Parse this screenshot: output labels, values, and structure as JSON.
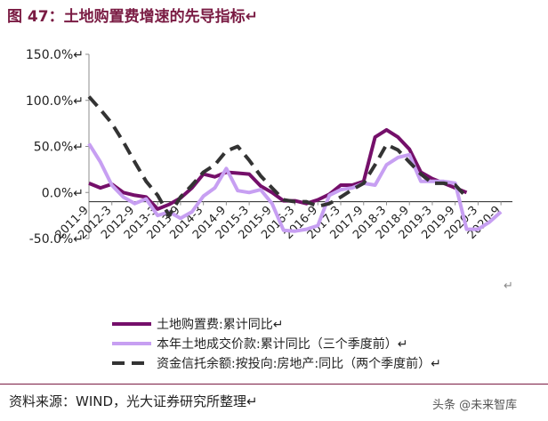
{
  "figure": {
    "title": "图 47：土地购置费增速的先导指标↵",
    "source": "资料来源：WIND，光大证券研究所整理↵",
    "watermark": "头条 @未来智库"
  },
  "chart_data": {
    "type": "line",
    "ylim": [
      -50,
      150
    ],
    "yticks": [
      150,
      100,
      50,
      0,
      -50
    ],
    "ytick_labels": [
      "150.0%↵",
      "100.0%↵",
      "50.0%↵",
      "0.0%↵",
      "-50.0%↵"
    ],
    "xlim": [
      0,
      37
    ],
    "xtick_positions": [
      0,
      2,
      4,
      6,
      8,
      10,
      12,
      14,
      16,
      18,
      20,
      22,
      24,
      26,
      28,
      30,
      32,
      34,
      36
    ],
    "xtick_labels": [
      "2011-9",
      "2012-3",
      "2012-9",
      "2013-3",
      "2013-9",
      "2014-3",
      "2014-9",
      "2015-3",
      "2015-9",
      "2016-3",
      "2016-9",
      "2017-3",
      "2017-9",
      "2018-3",
      "2018-9",
      "2019-3",
      "2019-9",
      "2020-3",
      "2020-9"
    ],
    "x_axis_at": -10,
    "legend_position": "bottom",
    "series": [
      {
        "name": "土地购置费:累计同比↵",
        "color": "#750f6a",
        "dash": "solid",
        "x": [
          0,
          1,
          2,
          3,
          4,
          5,
          6,
          7,
          8,
          9,
          10,
          11,
          12,
          13,
          14,
          15,
          16,
          17,
          18,
          19,
          20,
          21,
          22,
          23,
          24,
          25,
          26,
          27,
          28,
          29,
          30,
          31,
          32,
          33
        ],
        "values": [
          10,
          5,
          9,
          0,
          -3,
          -5,
          -18,
          -13,
          -6,
          5,
          20,
          17,
          22,
          21,
          20,
          7,
          0,
          -9,
          -9,
          -12,
          -8,
          -2,
          8,
          8,
          12,
          60,
          68,
          60,
          47,
          22,
          15,
          10,
          5,
          0
        ]
      },
      {
        "name": "本年土地成交价款:累计同比（三个季度前）↵",
        "color": "#c79ff2",
        "dash": "solid",
        "x": [
          0,
          1,
          2,
          3,
          4,
          5,
          6,
          7,
          8,
          9,
          10,
          11,
          12,
          13,
          14,
          15,
          16,
          17,
          18,
          19,
          20,
          21,
          22,
          23,
          24,
          25,
          26,
          27,
          28,
          29,
          30,
          31,
          32,
          33,
          34,
          35,
          36
        ],
        "values": [
          53,
          33,
          8,
          -5,
          -12,
          -7,
          -25,
          -21,
          -28,
          -21,
          -4,
          5,
          26,
          2,
          0,
          3,
          -12,
          -41,
          -42,
          -40,
          -36,
          -3,
          3,
          5,
          10,
          8,
          30,
          38,
          41,
          12,
          12,
          12,
          10,
          -40,
          -40,
          -32,
          -21
        ]
      },
      {
        "name": "资金信托余额:按投向:房地产:同比（两个季度前）↵",
        "color": "#333333",
        "dash": "dashed",
        "x": [
          0,
          1,
          2,
          3,
          4,
          5,
          6,
          7,
          8,
          9,
          10,
          11,
          12,
          13,
          14,
          15,
          16,
          17,
          18,
          19,
          20,
          21,
          22,
          23,
          24,
          25,
          26,
          27,
          28,
          29,
          30,
          31,
          32,
          33
        ],
        "values": [
          104,
          90,
          75,
          55,
          33,
          12,
          -3,
          -25,
          -5,
          8,
          22,
          30,
          45,
          50,
          35,
          18,
          5,
          -8,
          -10,
          -10,
          -15,
          -12,
          -5,
          3,
          10,
          30,
          52,
          46,
          33,
          20,
          10,
          10,
          8,
          -5
        ]
      }
    ]
  }
}
